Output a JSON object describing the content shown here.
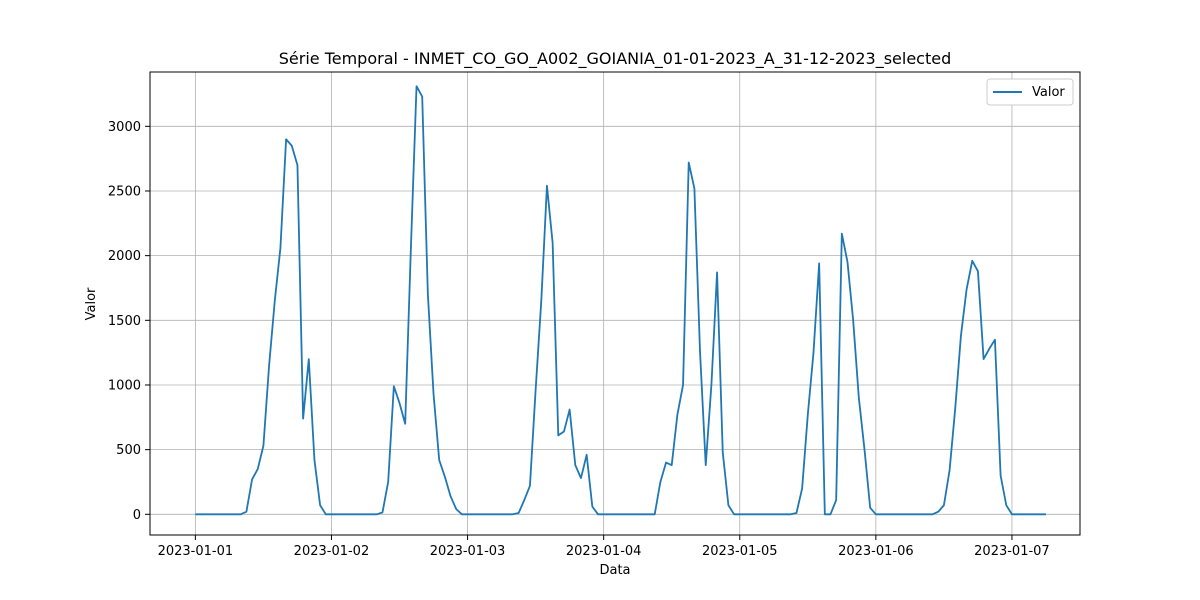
{
  "chart_data": {
    "type": "line",
    "title": "Série Temporal - INMET_CO_GO_A002_GOIANIA_01-01-2023_A_31-12-2023_selected",
    "xlabel": "Data",
    "ylabel": "Valor",
    "x_tick_labels": [
      "2023-01-01",
      "2023-01-02",
      "2023-01-03",
      "2023-01-04",
      "2023-01-05",
      "2023-01-06",
      "2023-01-07"
    ],
    "y_ticks": [
      0,
      500,
      1000,
      1500,
      2000,
      2500,
      3000
    ],
    "ylim": [
      -160,
      3420
    ],
    "xlim": [
      "2022-12-31 16:00",
      "2023-01-07 12:00"
    ],
    "grid": true,
    "legend": {
      "position": "top-right",
      "entries": [
        "Valor"
      ]
    },
    "series": [
      {
        "name": "Valor",
        "color": "#1f77b4",
        "points": [
          [
            "2023-01-01 00:00",
            0
          ],
          [
            "2023-01-01 01:00",
            0
          ],
          [
            "2023-01-01 02:00",
            0
          ],
          [
            "2023-01-01 03:00",
            0
          ],
          [
            "2023-01-01 04:00",
            0
          ],
          [
            "2023-01-01 05:00",
            0
          ],
          [
            "2023-01-01 06:00",
            0
          ],
          [
            "2023-01-01 07:00",
            0
          ],
          [
            "2023-01-01 08:00",
            0
          ],
          [
            "2023-01-01 09:00",
            20
          ],
          [
            "2023-01-01 10:00",
            270
          ],
          [
            "2023-01-01 11:00",
            350
          ],
          [
            "2023-01-01 12:00",
            530
          ],
          [
            "2023-01-01 13:00",
            1150
          ],
          [
            "2023-01-01 14:00",
            1650
          ],
          [
            "2023-01-01 15:00",
            2060
          ],
          [
            "2023-01-01 16:00",
            2900
          ],
          [
            "2023-01-01 17:00",
            2850
          ],
          [
            "2023-01-01 18:00",
            2700
          ],
          [
            "2023-01-01 19:00",
            740
          ],
          [
            "2023-01-01 20:00",
            1200
          ],
          [
            "2023-01-01 21:00",
            420
          ],
          [
            "2023-01-01 22:00",
            70
          ],
          [
            "2023-01-01 23:00",
            0
          ],
          [
            "2023-01-02 00:00",
            0
          ],
          [
            "2023-01-02 01:00",
            0
          ],
          [
            "2023-01-02 02:00",
            0
          ],
          [
            "2023-01-02 03:00",
            0
          ],
          [
            "2023-01-02 04:00",
            0
          ],
          [
            "2023-01-02 05:00",
            0
          ],
          [
            "2023-01-02 06:00",
            0
          ],
          [
            "2023-01-02 07:00",
            0
          ],
          [
            "2023-01-02 08:00",
            0
          ],
          [
            "2023-01-02 09:00",
            15
          ],
          [
            "2023-01-02 10:00",
            250
          ],
          [
            "2023-01-02 11:00",
            990
          ],
          [
            "2023-01-02 12:00",
            860
          ],
          [
            "2023-01-02 13:00",
            700
          ],
          [
            "2023-01-02 14:00",
            2050
          ],
          [
            "2023-01-02 15:00",
            3310
          ],
          [
            "2023-01-02 16:00",
            3230
          ],
          [
            "2023-01-02 17:00",
            1700
          ],
          [
            "2023-01-02 18:00",
            930
          ],
          [
            "2023-01-02 19:00",
            420
          ],
          [
            "2023-01-02 20:00",
            290
          ],
          [
            "2023-01-02 21:00",
            140
          ],
          [
            "2023-01-02 22:00",
            40
          ],
          [
            "2023-01-02 23:00",
            0
          ],
          [
            "2023-01-03 00:00",
            0
          ],
          [
            "2023-01-03 01:00",
            0
          ],
          [
            "2023-01-03 02:00",
            0
          ],
          [
            "2023-01-03 03:00",
            0
          ],
          [
            "2023-01-03 04:00",
            0
          ],
          [
            "2023-01-03 05:00",
            0
          ],
          [
            "2023-01-03 06:00",
            0
          ],
          [
            "2023-01-03 07:00",
            0
          ],
          [
            "2023-01-03 08:00",
            0
          ],
          [
            "2023-01-03 09:00",
            10
          ],
          [
            "2023-01-03 10:00",
            110
          ],
          [
            "2023-01-03 11:00",
            220
          ],
          [
            "2023-01-03 12:00",
            960
          ],
          [
            "2023-01-03 13:00",
            1650
          ],
          [
            "2023-01-03 14:00",
            2540
          ],
          [
            "2023-01-03 15:00",
            2100
          ],
          [
            "2023-01-03 16:00",
            610
          ],
          [
            "2023-01-03 17:00",
            640
          ],
          [
            "2023-01-03 18:00",
            810
          ],
          [
            "2023-01-03 19:00",
            380
          ],
          [
            "2023-01-03 20:00",
            280
          ],
          [
            "2023-01-03 21:00",
            460
          ],
          [
            "2023-01-03 22:00",
            60
          ],
          [
            "2023-01-03 23:00",
            0
          ],
          [
            "2023-01-04 00:00",
            0
          ],
          [
            "2023-01-04 01:00",
            0
          ],
          [
            "2023-01-04 02:00",
            0
          ],
          [
            "2023-01-04 03:00",
            0
          ],
          [
            "2023-01-04 04:00",
            0
          ],
          [
            "2023-01-04 05:00",
            0
          ],
          [
            "2023-01-04 06:00",
            0
          ],
          [
            "2023-01-04 07:00",
            0
          ],
          [
            "2023-01-04 08:00",
            0
          ],
          [
            "2023-01-04 09:00",
            0
          ],
          [
            "2023-01-04 10:00",
            250
          ],
          [
            "2023-01-04 11:00",
            400
          ],
          [
            "2023-01-04 12:00",
            380
          ],
          [
            "2023-01-04 13:00",
            770
          ],
          [
            "2023-01-04 14:00",
            1000
          ],
          [
            "2023-01-04 15:00",
            2720
          ],
          [
            "2023-01-04 16:00",
            2520
          ],
          [
            "2023-01-04 17:00",
            1250
          ],
          [
            "2023-01-04 18:00",
            380
          ],
          [
            "2023-01-04 19:00",
            1000
          ],
          [
            "2023-01-04 20:00",
            1870
          ],
          [
            "2023-01-04 21:00",
            480
          ],
          [
            "2023-01-04 22:00",
            70
          ],
          [
            "2023-01-04 23:00",
            0
          ],
          [
            "2023-01-05 00:00",
            0
          ],
          [
            "2023-01-05 01:00",
            0
          ],
          [
            "2023-01-05 02:00",
            0
          ],
          [
            "2023-01-05 03:00",
            0
          ],
          [
            "2023-01-05 04:00",
            0
          ],
          [
            "2023-01-05 05:00",
            0
          ],
          [
            "2023-01-05 06:00",
            0
          ],
          [
            "2023-01-05 07:00",
            0
          ],
          [
            "2023-01-05 08:00",
            0
          ],
          [
            "2023-01-05 09:00",
            0
          ],
          [
            "2023-01-05 10:00",
            10
          ],
          [
            "2023-01-05 11:00",
            200
          ],
          [
            "2023-01-05 12:00",
            770
          ],
          [
            "2023-01-05 13:00",
            1250
          ],
          [
            "2023-01-05 14:00",
            1940
          ],
          [
            "2023-01-05 15:00",
            0
          ],
          [
            "2023-01-05 16:00",
            0
          ],
          [
            "2023-01-05 17:00",
            110
          ],
          [
            "2023-01-05 18:00",
            2170
          ],
          [
            "2023-01-05 19:00",
            1950
          ],
          [
            "2023-01-05 20:00",
            1500
          ],
          [
            "2023-01-05 21:00",
            900
          ],
          [
            "2023-01-05 22:00",
            500
          ],
          [
            "2023-01-05 23:00",
            50
          ],
          [
            "2023-01-06 00:00",
            0
          ],
          [
            "2023-01-06 01:00",
            0
          ],
          [
            "2023-01-06 02:00",
            0
          ],
          [
            "2023-01-06 03:00",
            0
          ],
          [
            "2023-01-06 04:00",
            0
          ],
          [
            "2023-01-06 05:00",
            0
          ],
          [
            "2023-01-06 06:00",
            0
          ],
          [
            "2023-01-06 07:00",
            0
          ],
          [
            "2023-01-06 08:00",
            0
          ],
          [
            "2023-01-06 09:00",
            0
          ],
          [
            "2023-01-06 10:00",
            0
          ],
          [
            "2023-01-06 11:00",
            20
          ],
          [
            "2023-01-06 12:00",
            70
          ],
          [
            "2023-01-06 13:00",
            340
          ],
          [
            "2023-01-06 14:00",
            820
          ],
          [
            "2023-01-06 15:00",
            1380
          ],
          [
            "2023-01-06 16:00",
            1740
          ],
          [
            "2023-01-06 17:00",
            1960
          ],
          [
            "2023-01-06 18:00",
            1880
          ],
          [
            "2023-01-06 19:00",
            1200
          ],
          [
            "2023-01-06 20:00",
            1280
          ],
          [
            "2023-01-06 21:00",
            1350
          ],
          [
            "2023-01-06 22:00",
            300
          ],
          [
            "2023-01-06 23:00",
            70
          ],
          [
            "2023-01-07 00:00",
            0
          ],
          [
            "2023-01-07 01:00",
            0
          ],
          [
            "2023-01-07 02:00",
            0
          ],
          [
            "2023-01-07 03:00",
            0
          ],
          [
            "2023-01-07 04:00",
            0
          ],
          [
            "2023-01-07 05:00",
            0
          ],
          [
            "2023-01-07 06:00",
            0
          ]
        ]
      }
    ]
  }
}
